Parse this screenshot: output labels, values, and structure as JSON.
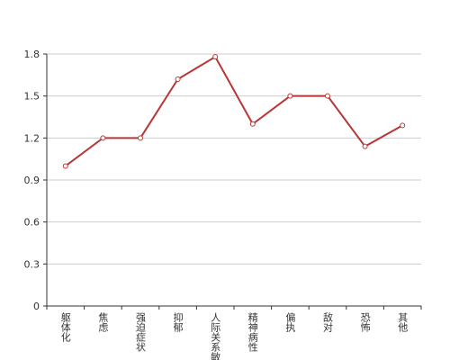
{
  "chart_data": {
    "type": "line",
    "categories": [
      "躯体化",
      "焦虑",
      "强迫症状",
      "抑郁",
      "人际关系敏感",
      "精神病性",
      "偏执",
      "敌对",
      "恐怖",
      "其他"
    ],
    "series": [
      {
        "color": "#b83636",
        "values": [
          1.0,
          1.2,
          1.2,
          1.62,
          1.78,
          1.3,
          1.5,
          1.5,
          1.14,
          1.29
        ]
      }
    ],
    "ylim": [
      0,
      1.8
    ],
    "yticks": [
      0,
      0.3,
      0.6,
      0.9,
      1.2,
      1.5,
      1.8
    ],
    "grid": true
  }
}
